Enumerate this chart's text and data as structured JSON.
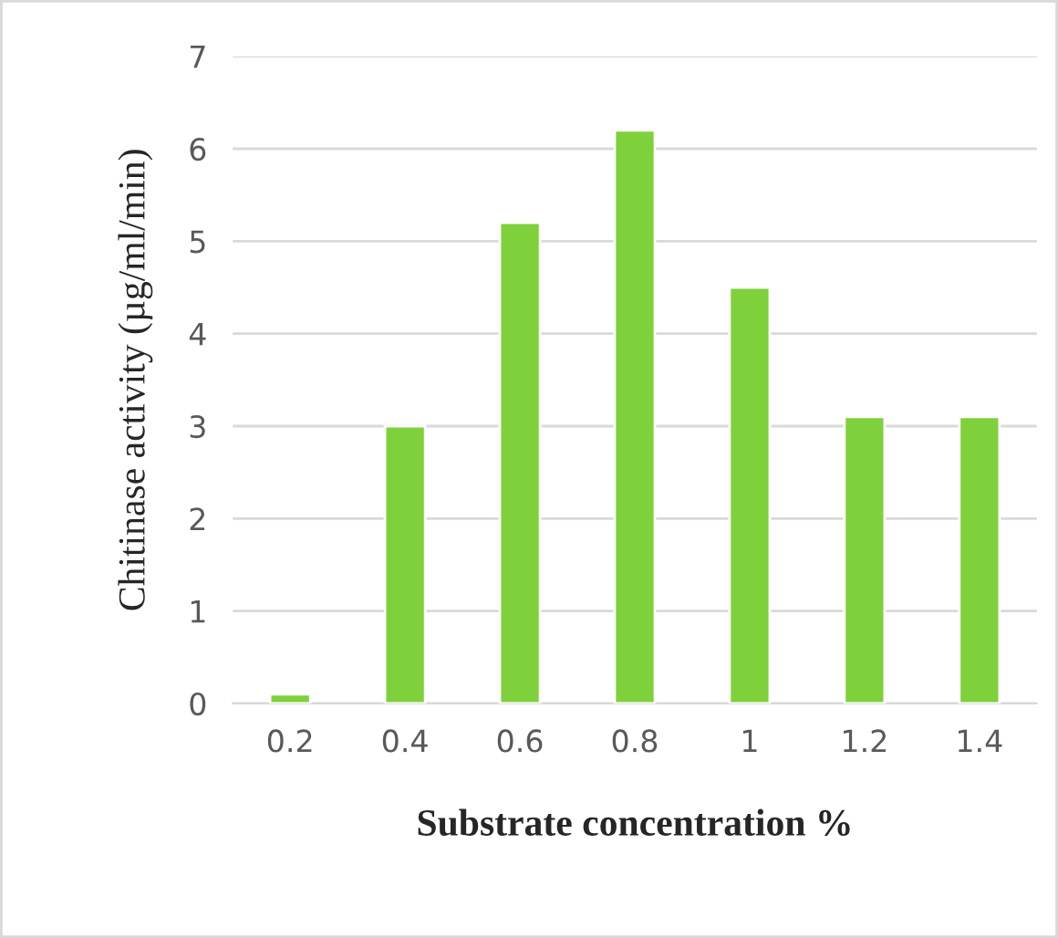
{
  "chart_data": {
    "type": "bar",
    "xlabel": "Substrate concentration %",
    "ylabel": "Chitinase activity (µg/ml/min)",
    "categories": [
      "0.2",
      "0.4",
      "0.6",
      "0.8",
      "1",
      "1.2",
      "1.4"
    ],
    "values": [
      0.1,
      3.0,
      5.2,
      6.2,
      4.5,
      3.1,
      3.1
    ],
    "color": "#7fd13b",
    "ylim": [
      0,
      7
    ],
    "yticks": [
      0,
      1,
      2,
      3,
      4,
      5,
      6,
      7
    ],
    "grid": "y"
  }
}
